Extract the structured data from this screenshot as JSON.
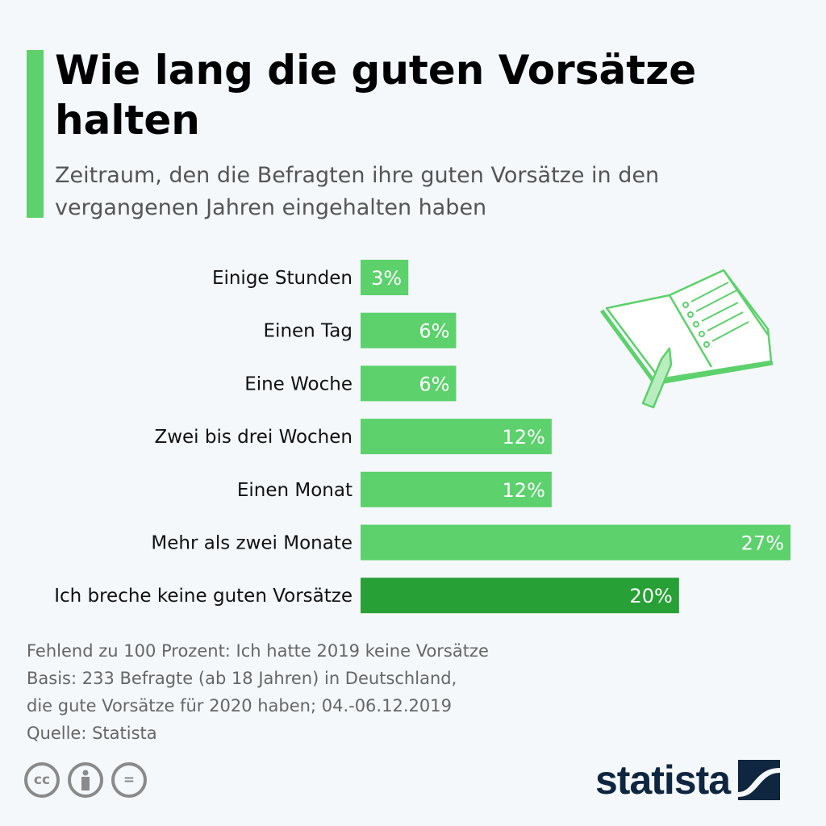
{
  "title": "Wie lang die guten Vorsätze halten",
  "subtitle": "Zeitraum, den die Befragten ihre guten Vorsätze in den vergangenen Jahren eingehalten haben",
  "colors": {
    "bar": "#5cd16c",
    "highlight": "#27a035",
    "accent": "#5cd16c",
    "background": "#f4f8fb"
  },
  "chart_data": {
    "type": "bar",
    "orientation": "horizontal",
    "categories": [
      "Einige Stunden",
      "Einen Tag",
      "Eine Woche",
      "Zwei bis drei Wochen",
      "Einen Monat",
      "Mehr als zwei Monate",
      "Ich breche keine guten Vorsätze"
    ],
    "values": [
      3,
      6,
      6,
      12,
      12,
      27,
      20
    ],
    "labels": [
      "3%",
      "6%",
      "6%",
      "12%",
      "12%",
      "27%",
      "20%"
    ],
    "highlighted_category": "Ich breche keine guten Vorsätze",
    "unit": "%"
  },
  "footer": {
    "lines": [
      "Fehlend zu 100 Prozent: Ich hatte 2019 keine Vorsätze",
      "Basis: 233 Befragte (ab 18 Jahren) in Deutschland,",
      "die gute Vorsätze für 2020 haben; 04.-06.12.2019",
      "Quelle: Statista"
    ]
  },
  "license_icons": [
    "cc-icon",
    "by-icon",
    "nd-icon"
  ],
  "license_text": {
    "cc": "cc",
    "nd": "="
  },
  "logo": {
    "text": "statista"
  }
}
